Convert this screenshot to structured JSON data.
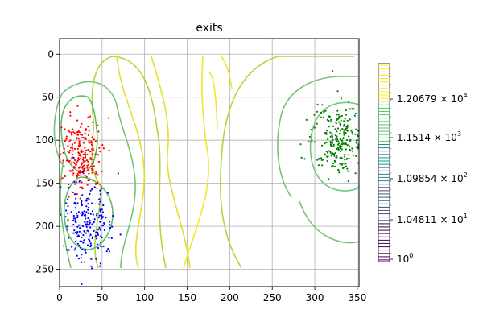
{
  "chart_data": {
    "type": "scatter",
    "title": "exits",
    "xlabel": "",
    "ylabel": "",
    "xlim": [
      0,
      352
    ],
    "ylim": [
      270,
      -18
    ],
    "y_inverted": true,
    "grid": true,
    "x_ticks": [
      0,
      50,
      100,
      150,
      200,
      250,
      300,
      350
    ],
    "y_ticks": [
      0,
      50,
      100,
      150,
      200,
      250
    ],
    "overlay": "contour lines (viridis-yellow/green levels)",
    "series": [
      {
        "color": "#ff0000",
        "center": [
          25,
          118
        ],
        "spread": [
          12,
          22
        ],
        "count": 240
      },
      {
        "color": "#0000ff",
        "center": [
          33,
          195
        ],
        "spread": [
          16,
          22
        ],
        "count": 220
      },
      {
        "color": "#008000",
        "center": [
          330,
          100
        ],
        "spread": [
          16,
          20
        ],
        "count": 260
      }
    ],
    "colorbar": {
      "scale": "log",
      "tick_labels": [
        {
          "mantissa": "1.20679",
          "exponent": "4"
        },
        {
          "mantissa": "1.1514",
          "exponent": "3"
        },
        {
          "mantissa": "1.09854",
          "exponent": "2"
        },
        {
          "mantissa": "1.04811",
          "exponent": "1"
        },
        {
          "mantissa": "10",
          "exponent": "0"
        }
      ],
      "colors": [
        "#440154",
        "#3b528b",
        "#21908d",
        "#5dc963",
        "#fde725"
      ]
    }
  }
}
